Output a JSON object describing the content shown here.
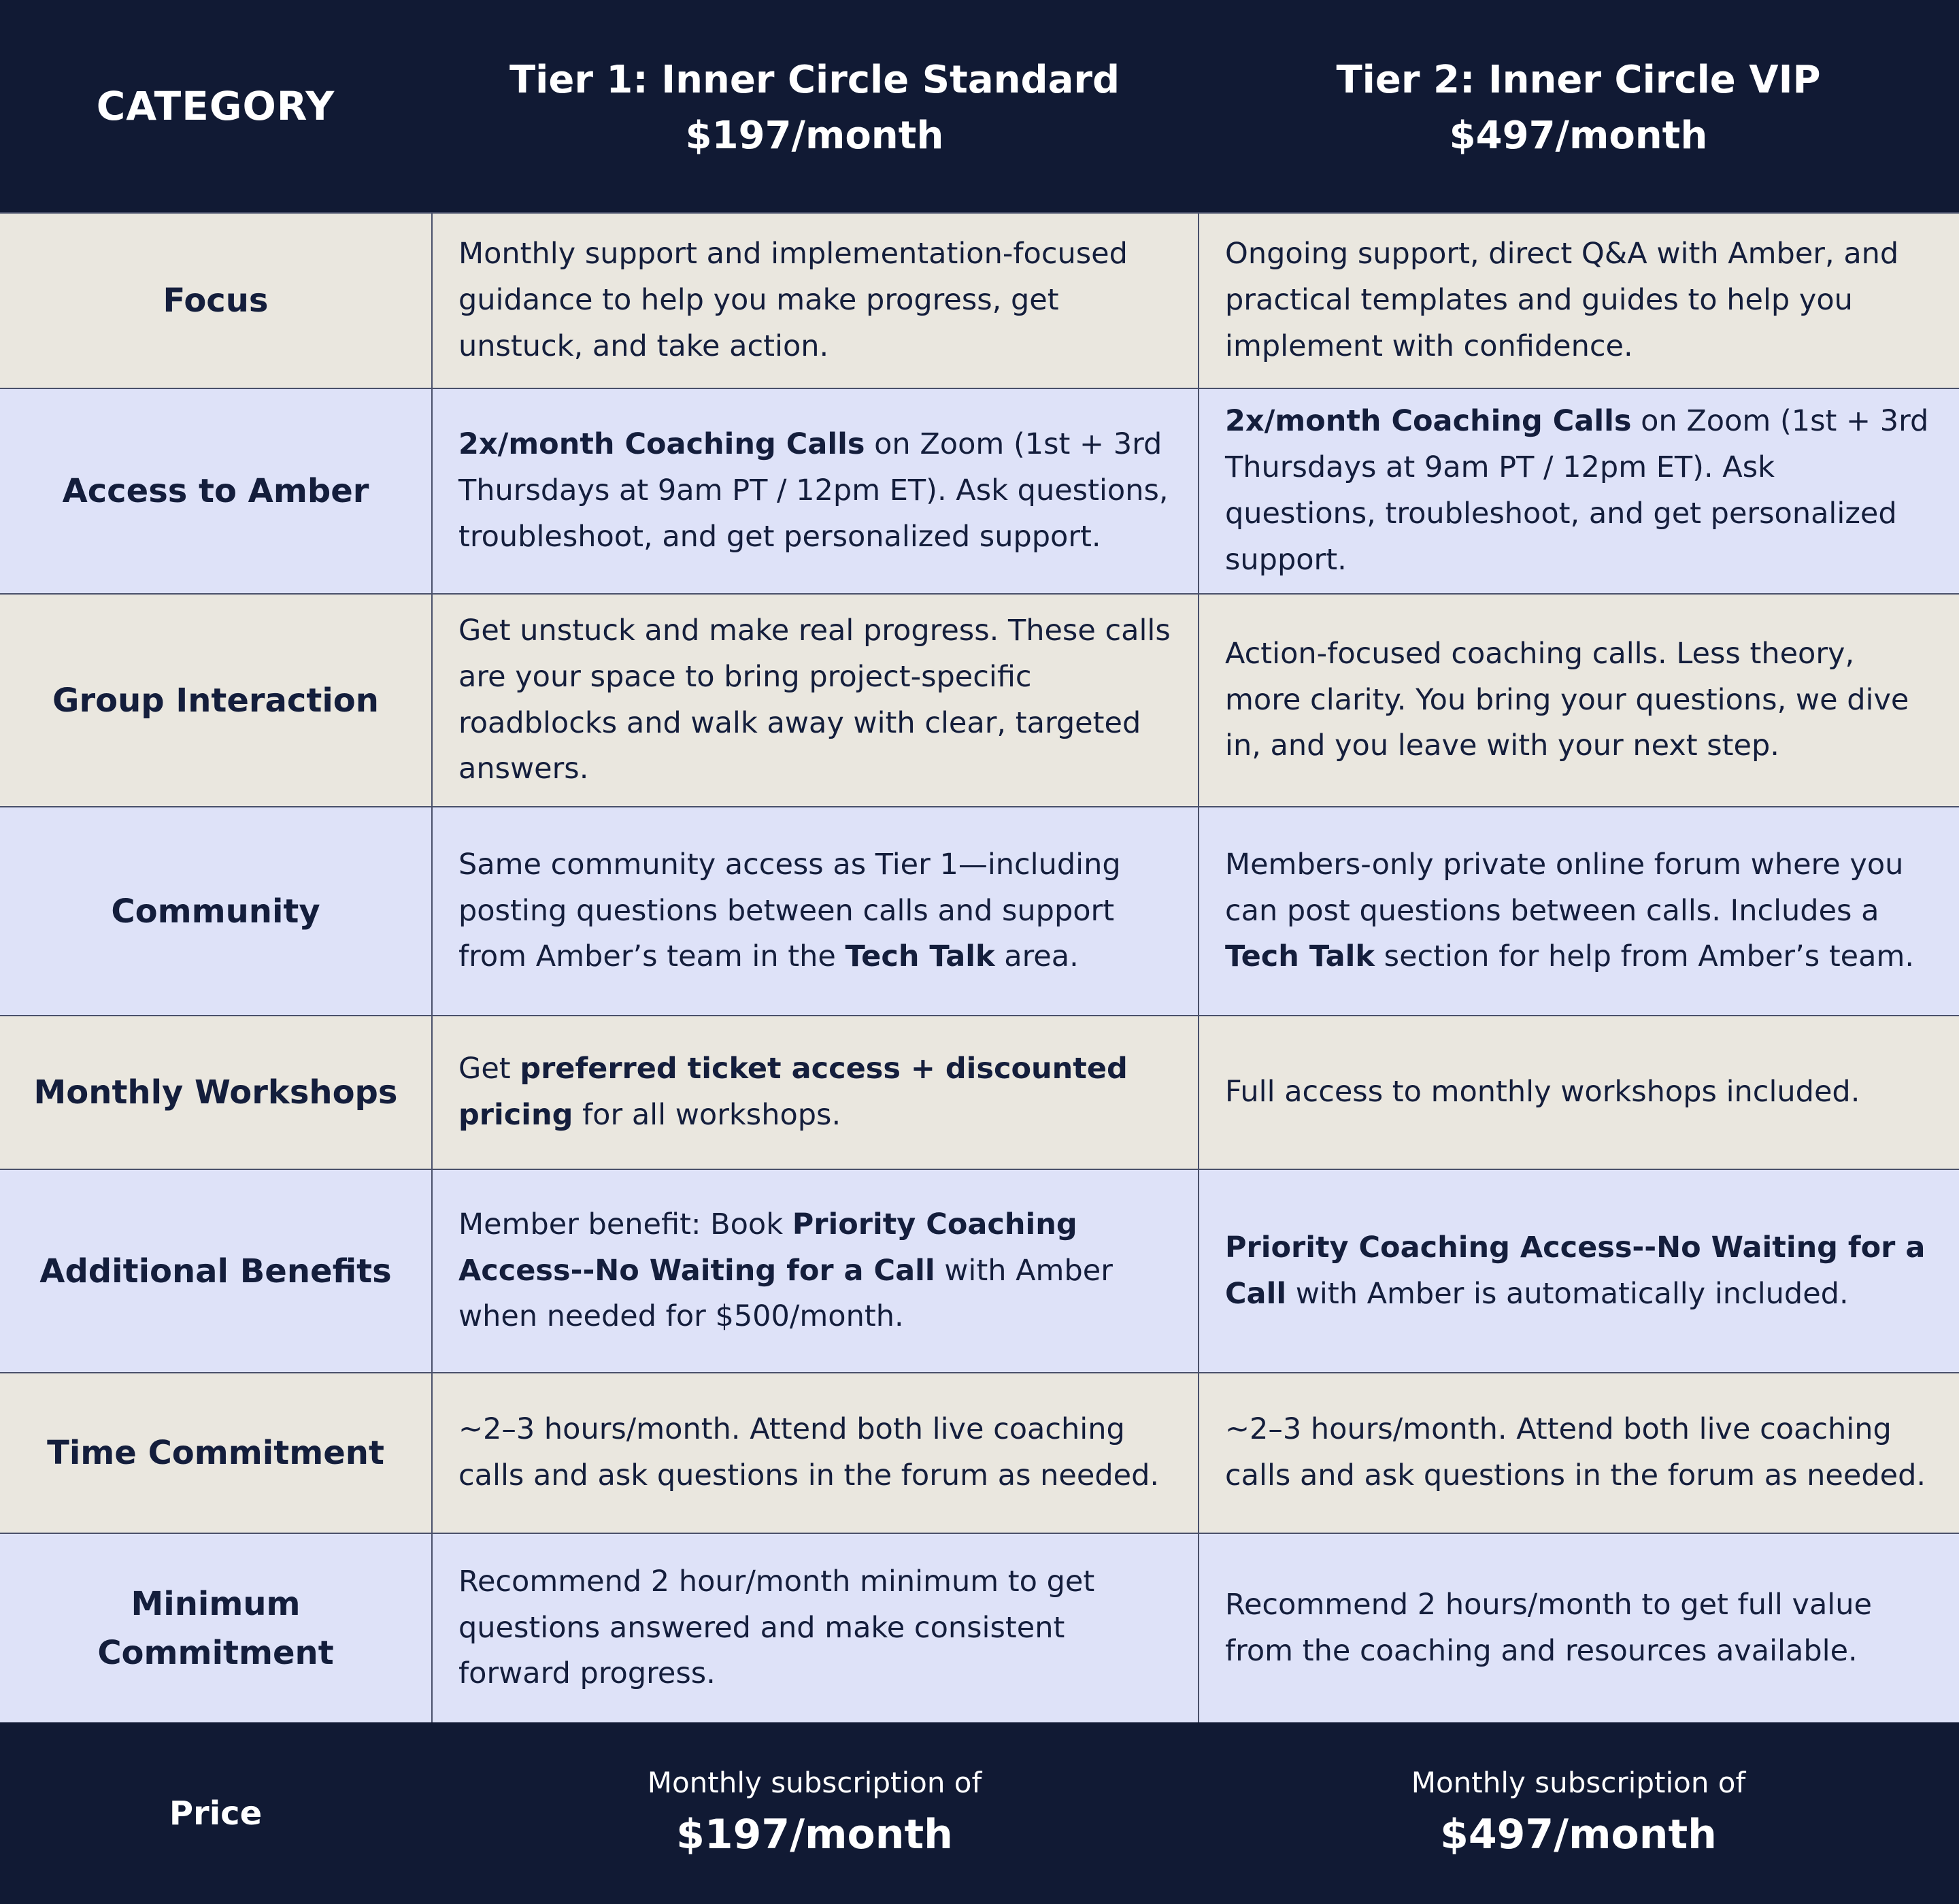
{
  "colors": {
    "header_footer_background": "#111a34",
    "row_background_cream": "#eae7df",
    "row_background_lavender": "#dee2f8",
    "text": "#141e3c",
    "header_text": "#ffffff",
    "grid_line": "#4a516b"
  },
  "header": {
    "category_label": "CATEGORY",
    "tier1_title": "Tier 1: Inner Circle Standard",
    "tier1_price": "$197/month",
    "tier2_title": "Tier 2: Inner Circle VIP",
    "tier2_price": "$497/month"
  },
  "rows": [
    {
      "category": "Focus",
      "shade": "cream",
      "tier1": [
        {
          "text": "Monthly support and implementation-focused guidance to help you make progress, get unstuck, and take action."
        }
      ],
      "tier2": [
        {
          "text": "Ongoing support, direct Q&A with Amber, and practical templates and guides to help you implement with confidence."
        }
      ]
    },
    {
      "category": "Access to Amber",
      "shade": "lavender",
      "tier1": [
        {
          "text": "2x/month Coaching Calls",
          "bold": true
        },
        {
          "text": " on Zoom (1st + 3rd Thursdays at 9am PT / 12pm ET). Ask questions, troubleshoot, and get personalized support."
        }
      ],
      "tier2": [
        {
          "text": "2x/month Coaching Calls",
          "bold": true
        },
        {
          "text": " on Zoom (1st + 3rd Thursdays at 9am PT / 12pm ET). Ask questions, troubleshoot, and get personalized support."
        }
      ]
    },
    {
      "category": "Group Interaction",
      "shade": "cream",
      "tier1": [
        {
          "text": "Get unstuck and make real progress. These calls are your space to bring project-specific roadblocks and walk away with clear, targeted answers."
        }
      ],
      "tier2": [
        {
          "text": "Action-focused coaching calls. Less theory, more clarity. You bring your questions, we dive in, and you leave with your next step."
        }
      ]
    },
    {
      "category": "Community",
      "shade": "lavender",
      "tier1": [
        {
          "text": "Same community access as Tier 1—including posting questions between calls and support from Amber’s team in the "
        },
        {
          "text": "Tech Talk",
          "bold": true
        },
        {
          "text": " area."
        }
      ],
      "tier2": [
        {
          "text": "Members-only private online forum where you can post questions between calls. Includes a "
        },
        {
          "text": "Tech Talk",
          "bold": true
        },
        {
          "text": " section for help from Amber’s team."
        }
      ]
    },
    {
      "category": "Monthly Workshops",
      "shade": "cream",
      "tier1": [
        {
          "text": "Get "
        },
        {
          "text": "preferred ticket access + discounted pricing",
          "bold": true
        },
        {
          "text": " for all workshops."
        }
      ],
      "tier2": [
        {
          "text": "Full access to monthly workshops included."
        }
      ]
    },
    {
      "category": "Additional Benefits",
      "shade": "lavender",
      "tier1": [
        {
          "text": "Member benefit: Book "
        },
        {
          "text": "Priority Coaching Access--No Waiting for a Call",
          "bold": true
        },
        {
          "text": " with Amber when needed for $500/month."
        }
      ],
      "tier2": [
        {
          "text": "Priority Coaching Access--No Waiting for a Call",
          "bold": true
        },
        {
          "text": " with Amber is automatically included."
        }
      ]
    },
    {
      "category": "Time Commitment",
      "shade": "cream",
      "tier1": [
        {
          "text": "~2–3 hours/month. Attend both live coaching calls and ask questions in the forum as needed."
        }
      ],
      "tier2": [
        {
          "text": "~2–3 hours/month. Attend both live coaching calls and ask questions in the forum as needed."
        }
      ]
    },
    {
      "category": "Minimum Commitment",
      "shade": "lavender",
      "tier1": [
        {
          "text": "Recommend 2 hour/month minimum to get questions answered and make consistent forward progress."
        }
      ],
      "tier2": [
        {
          "text": "Recommend 2 hours/month to get full value from the coaching and resources available."
        }
      ]
    }
  ],
  "footer": {
    "category": "Price",
    "tier1_subscription": "Monthly subscription of",
    "tier1_price": "$197/month",
    "tier2_subscription": "Monthly subscription of",
    "tier2_price": "$497/month"
  }
}
